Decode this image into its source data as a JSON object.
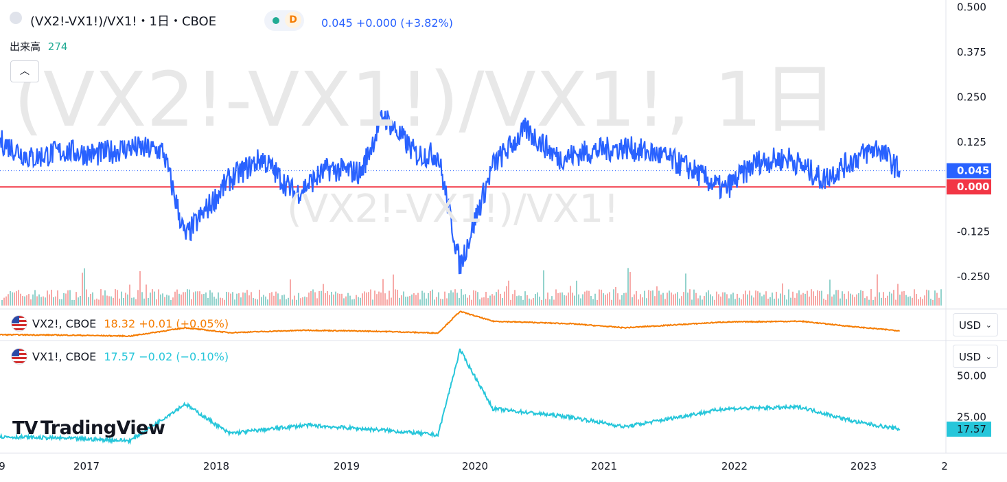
{
  "header": {
    "symbol_title": "(VX2!-VX1!)/VX1!・1日・CBOE",
    "interval_badge": "D",
    "last_price": "0.045",
    "change": "+0.000",
    "change_pct": "(+3.82%)",
    "volume_label": "出来高",
    "volume_value": "274"
  },
  "watermark": {
    "main": "(VX2!-VX1!)/VX1!, 1日",
    "sub": "(VX2!-VX1!)/VX1!"
  },
  "pane2": {
    "symbol": "VX2!, CBOE",
    "value": "18.32",
    "change": "+0.01",
    "change_pct": "(+0.05%)",
    "currency": "USD"
  },
  "pane3": {
    "symbol": "VX1!, CBOE",
    "value": "17.57",
    "change": "−0.02",
    "change_pct": "(−0.10%)",
    "currency": "USD"
  },
  "brand": {
    "name": "TradingView"
  },
  "colors": {
    "spread_line": "#2962ff",
    "zero_line": "#f23645",
    "vx2_line": "#f57c00",
    "vx1_line": "#26c6da",
    "volume_up": "#26a69a",
    "volume_down": "#ef5350"
  },
  "chart_data": [
    {
      "type": "line",
      "title": "(VX2!-VX1!)/VX1!",
      "x": [
        "2016-09",
        "2016-12",
        "2017-03",
        "2017-06",
        "2017-09",
        "2017-12",
        "2018-02",
        "2018-06",
        "2018-09",
        "2018-12",
        "2019-03",
        "2019-06",
        "2019-08",
        "2019-11",
        "2020-01",
        "2020-03",
        "2020-06",
        "2020-09",
        "2020-12",
        "2021-03",
        "2021-06",
        "2021-09",
        "2021-12",
        "2022-03",
        "2022-06",
        "2022-09",
        "2022-12",
        "2023-03",
        "2023-05",
        "2023-07"
      ],
      "series": [
        {
          "values": [
            0.13,
            0.08,
            0.1,
            0.09,
            0.11,
            0.1,
            -0.14,
            0.02,
            0.08,
            -0.02,
            0.05,
            0.04,
            0.2,
            0.09,
            0.09,
            -0.22,
            0.06,
            0.16,
            0.08,
            0.1,
            0.11,
            0.09,
            0.05,
            -0.01,
            0.07,
            0.08,
            0.02,
            0.08,
            0.11,
            0.045
          ]
        }
      ],
      "y_axis_ticks": [
        "0.500",
        "0.375",
        "0.250",
        "0.125",
        "-0.125",
        "-0.250"
      ],
      "last_value_label": "0.045",
      "zero_label": "0.000",
      "ylim": [
        -0.33,
        0.52
      ]
    },
    {
      "type": "line",
      "title": "VX2!, CBOE",
      "x": [
        "2016-09",
        "2017-03",
        "2017-09",
        "2018-02",
        "2018-06",
        "2019-01",
        "2019-08",
        "2020-01",
        "2020-03",
        "2020-06",
        "2021-01",
        "2021-06",
        "2022-03",
        "2022-10",
        "2023-03",
        "2023-07"
      ],
      "series": [
        {
          "name": "VX2!",
          "values": [
            13.5,
            13.0,
            11.8,
            22.0,
            16.0,
            19.0,
            17.5,
            15.5,
            42.0,
            30.0,
            27.0,
            22.0,
            29.0,
            30.0,
            23.0,
            18.32
          ]
        }
      ],
      "last_value_label": "18.32",
      "ylim": [
        8,
        45
      ]
    },
    {
      "type": "line",
      "title": "VX1!, CBOE",
      "x": [
        "2016-09",
        "2017-03",
        "2017-09",
        "2018-02",
        "2018-06",
        "2019-01",
        "2019-08",
        "2020-01",
        "2020-03",
        "2020-06",
        "2021-01",
        "2021-06",
        "2022-03",
        "2022-10",
        "2023-03",
        "2023-07"
      ],
      "series": [
        {
          "name": "VX1!",
          "values": [
            13.0,
            12.0,
            10.5,
            33.0,
            15.0,
            20.0,
            17.0,
            14.0,
            66.0,
            30.0,
            25.0,
            19.0,
            30.0,
            31.0,
            22.0,
            17.57
          ]
        }
      ],
      "y_axis_ticks": [
        "50.00",
        "25.00"
      ],
      "last_value_label": "17.57",
      "ylim": [
        5,
        70
      ]
    }
  ],
  "x_axis": {
    "ticks": [
      "9",
      "2017",
      "2018",
      "2019",
      "2020",
      "2021",
      "2022",
      "2023",
      "2"
    ]
  }
}
